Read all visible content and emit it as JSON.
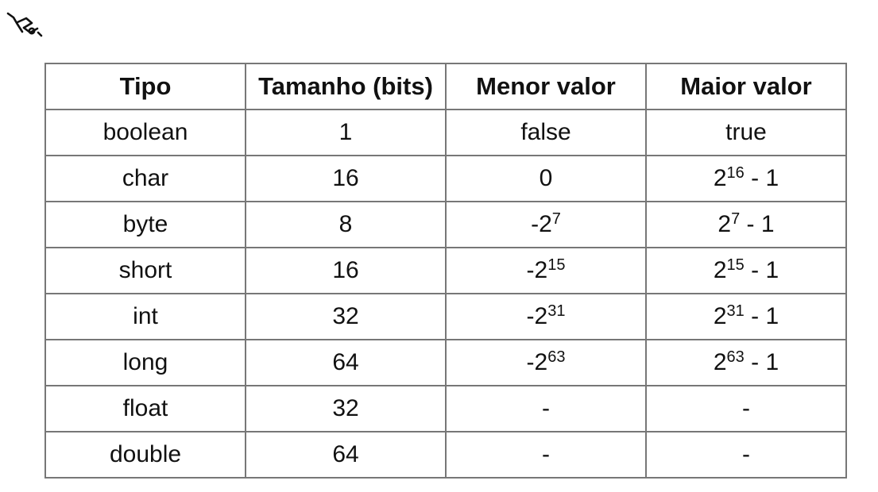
{
  "logo": {
    "icon": "brand-mark-icon"
  },
  "table": {
    "headers": [
      "Tipo",
      "Tamanho (bits)",
      "Menor valor",
      "Maior valor"
    ],
    "rows": [
      {
        "tipo": "boolean",
        "tamanho": "1",
        "menor": {
          "base": "false",
          "exp": "",
          "suffix": ""
        },
        "maior": {
          "base": "true",
          "exp": "",
          "suffix": ""
        }
      },
      {
        "tipo": "char",
        "tamanho": "16",
        "menor": {
          "base": "0",
          "exp": "",
          "suffix": ""
        },
        "maior": {
          "base": "2",
          "exp": "16",
          "suffix": " - 1"
        }
      },
      {
        "tipo": "byte",
        "tamanho": "8",
        "menor": {
          "base": "-2",
          "exp": "7",
          "suffix": ""
        },
        "maior": {
          "base": "2",
          "exp": "7",
          "suffix": " - 1"
        }
      },
      {
        "tipo": "short",
        "tamanho": "16",
        "menor": {
          "base": "-2",
          "exp": "15",
          "suffix": ""
        },
        "maior": {
          "base": "2",
          "exp": "15",
          "suffix": " - 1"
        }
      },
      {
        "tipo": "int",
        "tamanho": "32",
        "menor": {
          "base": "-2",
          "exp": "31",
          "suffix": ""
        },
        "maior": {
          "base": "2",
          "exp": "31",
          "suffix": " - 1"
        }
      },
      {
        "tipo": "long",
        "tamanho": "64",
        "menor": {
          "base": "-2",
          "exp": "63",
          "suffix": ""
        },
        "maior": {
          "base": "2",
          "exp": "63",
          "suffix": " - 1"
        }
      },
      {
        "tipo": "float",
        "tamanho": "32",
        "menor": {
          "base": "-",
          "exp": "",
          "suffix": ""
        },
        "maior": {
          "base": "-",
          "exp": "",
          "suffix": ""
        }
      },
      {
        "tipo": "double",
        "tamanho": "64",
        "menor": {
          "base": "-",
          "exp": "",
          "suffix": ""
        },
        "maior": {
          "base": "-",
          "exp": "",
          "suffix": ""
        }
      }
    ]
  }
}
